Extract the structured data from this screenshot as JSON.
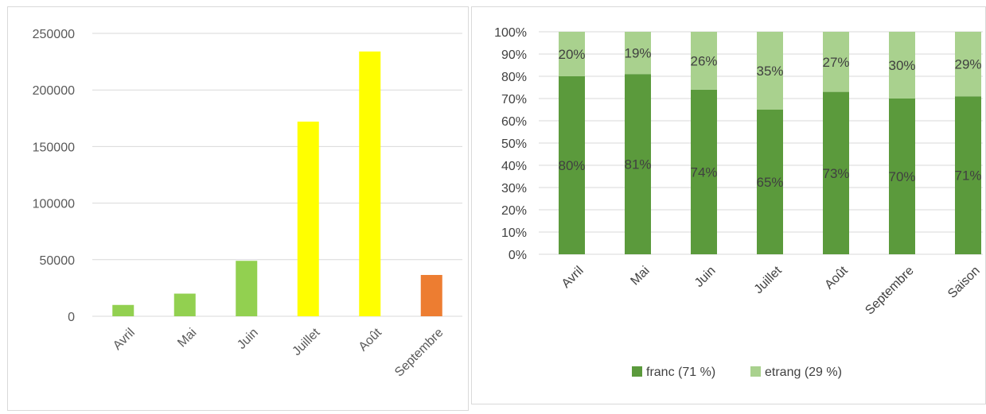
{
  "chart_data": [
    {
      "type": "bar",
      "title": "",
      "categories": [
        "Avril",
        "Mai",
        "Juin",
        "Juillet",
        "Août",
        "Septembre"
      ],
      "values": [
        10000,
        20000,
        49000,
        172000,
        234000,
        36500
      ],
      "bar_colors": [
        "#92d050",
        "#92d050",
        "#92d050",
        "#ffff00",
        "#ffff00",
        "#ed7d31"
      ],
      "ylim": [
        0,
        250000
      ],
      "yticks": [
        0,
        50000,
        100000,
        150000,
        200000,
        250000
      ],
      "grid": true,
      "xlabel": "",
      "ylabel": ""
    },
    {
      "type": "bar",
      "stacked": "percent",
      "title": "",
      "categories": [
        "Avril",
        "Mai",
        "Juin",
        "Juillet",
        "Août",
        "Septembre",
        "Saison"
      ],
      "series": [
        {
          "name": "franc (71 %)",
          "color": "#5b9a3c",
          "values": [
            80,
            81,
            74,
            65,
            73,
            70,
            71
          ]
        },
        {
          "name": "etrang (29 %)",
          "color": "#a9d18e",
          "values": [
            20,
            19,
            26,
            35,
            27,
            30,
            29
          ]
        }
      ],
      "ylim": [
        0,
        100
      ],
      "yticks": [
        "0%",
        "10%",
        "20%",
        "30%",
        "40%",
        "50%",
        "60%",
        "70%",
        "80%",
        "90%",
        "100%"
      ],
      "grid": true,
      "legend": "bottom",
      "xlabel": "",
      "ylabel": ""
    }
  ]
}
